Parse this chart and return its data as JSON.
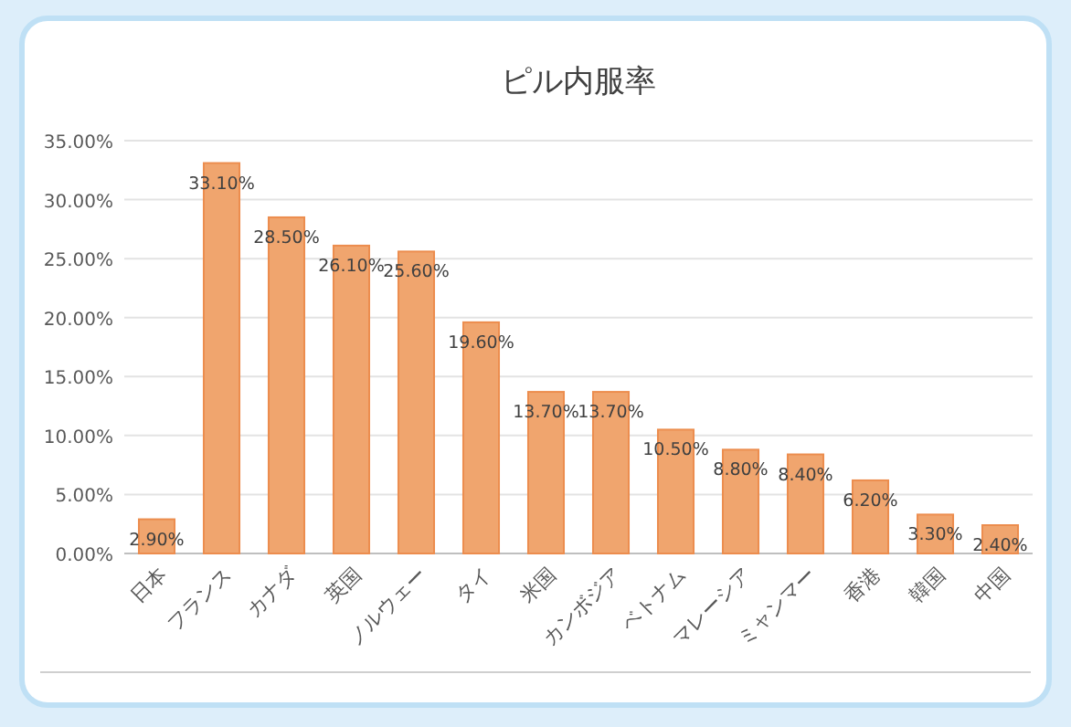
{
  "chart_data": {
    "type": "bar",
    "title": "ピル内服率",
    "categories": [
      "日本",
      "フランス",
      "カナダ",
      "英国",
      "ノルウェー",
      "タイ",
      "米国",
      "カンボジア",
      "ベトナム",
      "マレーシア",
      "ミャンマー",
      "香港",
      "韓国",
      "中国"
    ],
    "values": [
      2.9,
      33.1,
      28.5,
      26.1,
      25.6,
      19.6,
      13.7,
      13.7,
      10.5,
      8.8,
      8.4,
      6.2,
      3.3,
      2.4
    ],
    "value_labels": [
      "2.90%",
      "33.10%",
      "28.50%",
      "26.10%",
      "25.60%",
      "19.60%",
      "13.70%",
      "13.70%",
      "10.50%",
      "8.80%",
      "8.40%",
      "6.20%",
      "3.30%",
      "2.40%"
    ],
    "color": "#f0a56e",
    "ylim": [
      0,
      35
    ],
    "yticks": [
      {
        "value": 0,
        "label": "0.00%"
      },
      {
        "value": 5,
        "label": "5.00%"
      },
      {
        "value": 10,
        "label": "10.00%"
      },
      {
        "value": 15,
        "label": "15.00%"
      },
      {
        "value": 20,
        "label": "20.00%"
      },
      {
        "value": 25,
        "label": "25.00%"
      },
      {
        "value": 30,
        "label": "30.00%"
      },
      {
        "value": 35,
        "label": "35.00%"
      }
    ],
    "grid": "y"
  }
}
